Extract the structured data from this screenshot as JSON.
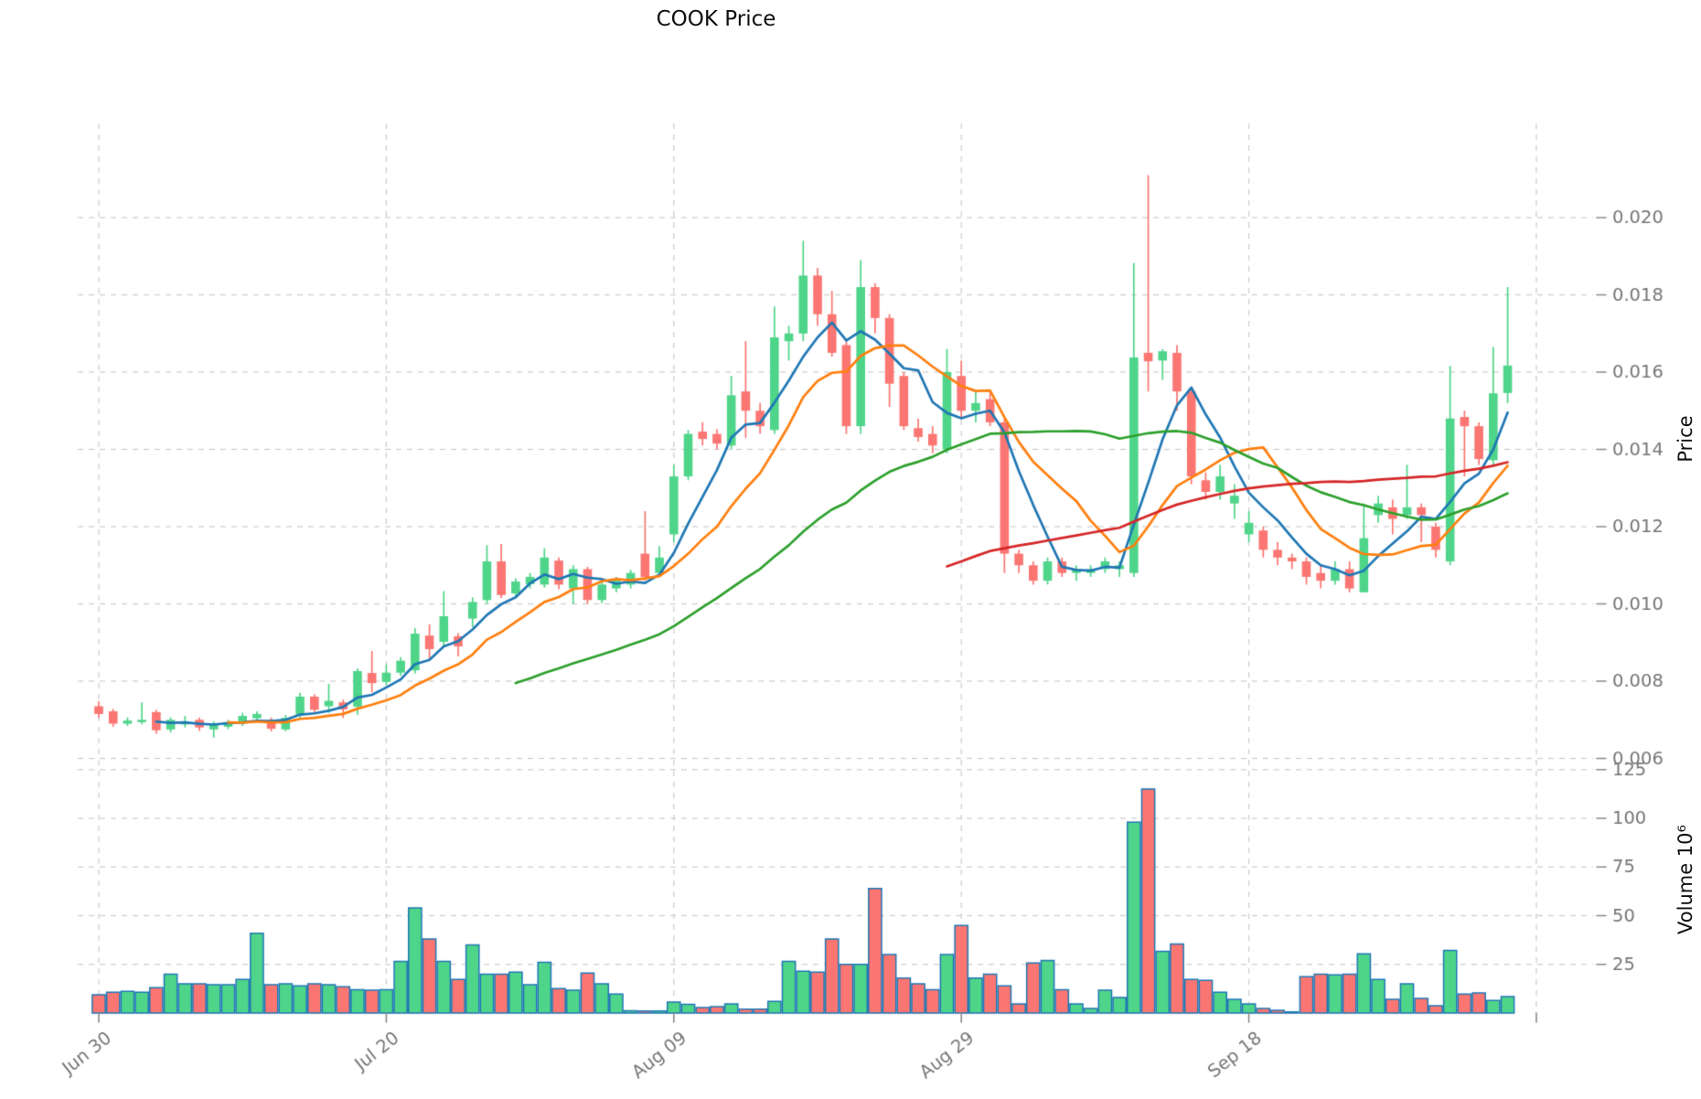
{
  "title": "COOK Price",
  "price_axis": {
    "label": "Price",
    "ticks": [
      "0.020",
      "0.018",
      "0.016",
      "0.014",
      "0.012",
      "0.010",
      "0.008",
      "0.006"
    ],
    "tick_values": [
      0.02,
      0.018,
      0.016,
      0.014,
      0.012,
      0.01,
      0.008,
      0.006
    ]
  },
  "volume_axis": {
    "label": "Volume  10⁶",
    "ticks": [
      "125",
      "100",
      "75",
      "50",
      "25"
    ],
    "tick_values": [
      125,
      100,
      75,
      50,
      25
    ]
  },
  "x_axis": {
    "tick_labels": [
      "Jun 30",
      "Jul 20",
      "Aug 09",
      "Aug 29",
      "Sep 18"
    ],
    "tick_indices": [
      0,
      20,
      40,
      60,
      80
    ],
    "extra_gridline_index": 100
  },
  "chart_data": {
    "type": "candlestick",
    "title": "COOK Price",
    "ylabel": "Price",
    "ylabel_volume": "Volume  10⁶",
    "price_ylim": [
      0.0059,
      0.0222
    ],
    "volume_ylim": [
      0,
      130
    ],
    "grid": true,
    "open": [
      0.00735,
      0.00722,
      0.0069,
      0.00694,
      0.0072,
      0.00675,
      0.00688,
      0.007,
      0.00675,
      0.00682,
      0.0069,
      0.00704,
      0.007,
      0.00675,
      0.00713,
      0.0076,
      0.00735,
      0.00745,
      0.00734,
      0.00821,
      0.00798,
      0.00822,
      0.00828,
      0.00918,
      0.00902,
      0.00916,
      0.00962,
      0.0101,
      0.0111,
      0.01027,
      0.01051,
      0.0105,
      0.01112,
      0.0104,
      0.0109,
      0.0101,
      0.0104,
      0.0105,
      0.0113,
      0.0108,
      0.0118,
      0.0133,
      0.01446,
      0.0144,
      0.0141,
      0.0155,
      0.015,
      0.0145,
      0.0168,
      0.017,
      0.0185,
      0.0175,
      0.0167,
      0.0146,
      0.0182,
      0.0174,
      0.0159,
      0.01455,
      0.0144,
      0.014,
      0.0159,
      0.015,
      0.0153,
      0.0147,
      0.0113,
      0.011,
      0.0106,
      0.0111,
      0.0108,
      0.0108,
      0.0109,
      0.0109,
      0.0108,
      0.0165,
      0.0163,
      0.0165,
      0.0155,
      0.0132,
      0.0129,
      0.0126,
      0.0118,
      0.0119,
      0.0114,
      0.0112,
      0.0111,
      0.0108,
      0.0106,
      0.0109,
      0.0103,
      0.0123,
      0.0125,
      0.0123,
      0.0125,
      0.012,
      0.0111,
      0.01484,
      0.0146,
      0.01372,
      0.01546
    ],
    "high": [
      0.00748,
      0.00728,
      0.00706,
      0.00745,
      0.00726,
      0.00706,
      0.0071,
      0.00706,
      0.00696,
      0.007,
      0.00718,
      0.00722,
      0.00706,
      0.00712,
      0.0077,
      0.00766,
      0.00793,
      0.00752,
      0.00833,
      0.00878,
      0.00843,
      0.00862,
      0.00937,
      0.00947,
      0.01033,
      0.00924,
      0.01017,
      0.01152,
      0.01155,
      0.01066,
      0.0108,
      0.01144,
      0.0112,
      0.011,
      0.01096,
      0.0106,
      0.0107,
      0.01088,
      0.0124,
      0.0115,
      0.0136,
      0.0145,
      0.0147,
      0.01452,
      0.0159,
      0.0168,
      0.0152,
      0.0177,
      0.0172,
      0.0194,
      0.0187,
      0.0181,
      0.0168,
      0.0189,
      0.0183,
      0.0175,
      0.016,
      0.0148,
      0.0146,
      0.0166,
      0.0163,
      0.0155,
      0.0155,
      0.0148,
      0.0114,
      0.0111,
      0.0112,
      0.0112,
      0.011,
      0.011,
      0.0112,
      0.0111,
      0.01882,
      0.0211,
      0.0166,
      0.0167,
      0.0156,
      0.0134,
      0.0136,
      0.0131,
      0.0124,
      0.012,
      0.0116,
      0.0113,
      0.0112,
      0.011,
      0.0111,
      0.0111,
      0.0126,
      0.0128,
      0.0127,
      0.0136,
      0.0126,
      0.0121,
      0.01616,
      0.015,
      0.0147,
      0.01665,
      0.0182
    ],
    "low": [
      0.00705,
      0.00682,
      0.00684,
      0.00688,
      0.00664,
      0.00667,
      0.0068,
      0.00671,
      0.00654,
      0.00676,
      0.00684,
      0.00697,
      0.0067,
      0.0067,
      0.00706,
      0.00716,
      0.00718,
      0.00705,
      0.00713,
      0.00771,
      0.0079,
      0.00814,
      0.0082,
      0.00859,
      0.0089,
      0.00864,
      0.0094,
      0.01,
      0.01015,
      0.01016,
      0.0104,
      0.01042,
      0.01038,
      0.01,
      0.01,
      0.01002,
      0.0103,
      0.0104,
      0.0106,
      0.0107,
      0.0116,
      0.0132,
      0.0141,
      0.014,
      0.014,
      0.0143,
      0.0144,
      0.0144,
      0.0163,
      0.0168,
      0.0172,
      0.0164,
      0.0144,
      0.0144,
      0.017,
      0.0151,
      0.0145,
      0.0142,
      0.0139,
      0.0139,
      0.0148,
      0.0147,
      0.0146,
      0.0108,
      0.0108,
      0.0105,
      0.0105,
      0.0107,
      0.0106,
      0.0107,
      0.0108,
      0.0107,
      0.0107,
      0.0155,
      0.0158,
      0.015,
      0.0131,
      0.0127,
      0.0127,
      0.0122,
      0.0116,
      0.0112,
      0.011,
      0.0109,
      0.0105,
      0.0104,
      0.0105,
      0.0103,
      0.0103,
      0.0121,
      0.0118,
      0.0122,
      0.0116,
      0.0112,
      0.011,
      0.0133,
      0.0136,
      0.0136,
      0.0152
    ],
    "close": [
      0.00715,
      0.0069,
      0.00698,
      0.007,
      0.00673,
      0.007,
      0.00695,
      0.0068,
      0.0069,
      0.00692,
      0.0071,
      0.00715,
      0.00677,
      0.00705,
      0.0076,
      0.00726,
      0.00749,
      0.00727,
      0.00826,
      0.00795,
      0.00822,
      0.00853,
      0.00923,
      0.00883,
      0.00968,
      0.0089,
      0.01005,
      0.0111,
      0.01023,
      0.01058,
      0.0107,
      0.0112,
      0.0105,
      0.0109,
      0.0101,
      0.0105,
      0.0106,
      0.0108,
      0.0107,
      0.0112,
      0.0133,
      0.0144,
      0.01427,
      0.01415,
      0.0154,
      0.015,
      0.0146,
      0.0169,
      0.017,
      0.0185,
      0.0175,
      0.0165,
      0.0146,
      0.0182,
      0.0174,
      0.0157,
      0.0146,
      0.01432,
      0.0141,
      0.016,
      0.015,
      0.0152,
      0.0147,
      0.0113,
      0.011,
      0.0106,
      0.0111,
      0.0108,
      0.0109,
      0.0109,
      0.0111,
      0.011,
      0.01638,
      0.01628,
      0.01654,
      0.0155,
      0.0133,
      0.0129,
      0.0133,
      0.0128,
      0.0121,
      0.0114,
      0.0112,
      0.0111,
      0.0107,
      0.0106,
      0.0109,
      0.0104,
      0.0117,
      0.0126,
      0.0122,
      0.0125,
      0.0123,
      0.0114,
      0.0148,
      0.0146,
      0.01375,
      0.01545,
      0.01617
    ],
    "volume": [
      9.4,
      10.7,
      11.2,
      10.7,
      13,
      20,
      15,
      15,
      14.5,
      14.5,
      17.3,
      41,
      14.5,
      15,
      14,
      15,
      14.5,
      13.5,
      12,
      11.7,
      12,
      26.5,
      54,
      38,
      26.5,
      17.3,
      35,
      20,
      20,
      21,
      14.5,
      26,
      12.6,
      11.7,
      20.5,
      15,
      9.8,
      1.2,
      1,
      1,
      5.6,
      4.5,
      2.8,
      3.3,
      4.7,
      2,
      2,
      6,
      26.5,
      21.5,
      21,
      38,
      25,
      25,
      64,
      30,
      18,
      15,
      12,
      30,
      45,
      18,
      20,
      14,
      4.7,
      25.7,
      27,
      12,
      4.7,
      2.3,
      11.7,
      8,
      98,
      115,
      31.7,
      35.5,
      17.3,
      16.8,
      10.7,
      7,
      4.7,
      2.3,
      1.4,
      0.5,
      18.7,
      20,
      19.6,
      20,
      30.4,
      17.3,
      7,
      15,
      7.5,
      3.7,
      32.2,
      9.8,
      10.3,
      6.5,
      8.4
    ],
    "moving_averages": [
      {
        "window": 5,
        "color": "#1f77b4"
      },
      {
        "window": 10,
        "color": "#ff7f0e"
      },
      {
        "window": 30,
        "color": "#2ca02c"
      },
      {
        "window": 60,
        "color": "#d62728"
      }
    ],
    "colors": {
      "up": "#4fd58a",
      "down": "#fb7672",
      "volume_edge": "#1f77b4",
      "grid": "#cdcdcd",
      "tick_text": "#767676",
      "tick_mark": "#8a8a8a"
    }
  }
}
